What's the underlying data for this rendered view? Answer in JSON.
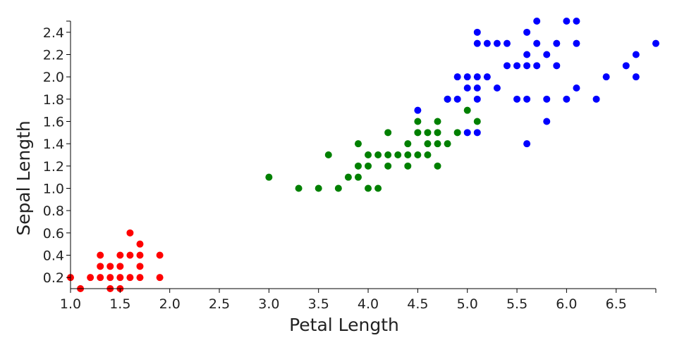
{
  "chart_data": {
    "type": "scatter",
    "xlabel": "Petal Length",
    "ylabel": "Sepal Length",
    "xlim": [
      1.0,
      6.9
    ],
    "ylim": [
      0.1,
      2.5
    ],
    "xticks": [
      "1.0",
      "1.5",
      "2.0",
      "2.5",
      "3.0",
      "3.5",
      "4.0",
      "4.5",
      "5.0",
      "5.5",
      "6.0",
      "6.5"
    ],
    "yticks": [
      "0.2",
      "0.4",
      "0.6",
      "0.8",
      "1.0",
      "1.2",
      "1.4",
      "1.6",
      "1.8",
      "2.0",
      "2.2",
      "2.4"
    ],
    "grid": false,
    "legend": "none",
    "series": [
      {
        "color": "#ff0000",
        "points": [
          [
            1.0,
            0.2
          ],
          [
            1.1,
            0.1
          ],
          [
            1.2,
            0.2
          ],
          [
            1.3,
            0.2
          ],
          [
            1.3,
            0.3
          ],
          [
            1.3,
            0.4
          ],
          [
            1.4,
            0.1
          ],
          [
            1.4,
            0.2
          ],
          [
            1.4,
            0.3
          ],
          [
            1.5,
            0.1
          ],
          [
            1.5,
            0.2
          ],
          [
            1.5,
            0.3
          ],
          [
            1.5,
            0.4
          ],
          [
            1.6,
            0.2
          ],
          [
            1.6,
            0.4
          ],
          [
            1.6,
            0.6
          ],
          [
            1.7,
            0.2
          ],
          [
            1.7,
            0.3
          ],
          [
            1.7,
            0.4
          ],
          [
            1.7,
            0.5
          ],
          [
            1.9,
            0.2
          ],
          [
            1.9,
            0.4
          ]
        ]
      },
      {
        "color": "#008000",
        "points": [
          [
            3.0,
            1.1
          ],
          [
            3.3,
            1.0
          ],
          [
            3.5,
            1.0
          ],
          [
            3.6,
            1.3
          ],
          [
            3.7,
            1.0
          ],
          [
            3.8,
            1.1
          ],
          [
            3.9,
            1.1
          ],
          [
            3.9,
            1.2
          ],
          [
            3.9,
            1.4
          ],
          [
            4.0,
            1.0
          ],
          [
            4.0,
            1.2
          ],
          [
            4.0,
            1.3
          ],
          [
            4.1,
            1.0
          ],
          [
            4.1,
            1.3
          ],
          [
            4.2,
            1.2
          ],
          [
            4.2,
            1.3
          ],
          [
            4.2,
            1.5
          ],
          [
            4.3,
            1.3
          ],
          [
            4.4,
            1.2
          ],
          [
            4.4,
            1.3
          ],
          [
            4.4,
            1.4
          ],
          [
            4.5,
            1.3
          ],
          [
            4.5,
            1.5
          ],
          [
            4.5,
            1.6
          ],
          [
            4.6,
            1.3
          ],
          [
            4.6,
            1.4
          ],
          [
            4.6,
            1.5
          ],
          [
            4.7,
            1.2
          ],
          [
            4.7,
            1.4
          ],
          [
            4.7,
            1.5
          ],
          [
            4.7,
            1.6
          ],
          [
            4.8,
            1.4
          ],
          [
            4.8,
            1.8
          ],
          [
            4.9,
            1.5
          ],
          [
            5.0,
            1.7
          ],
          [
            5.1,
            1.6
          ]
        ]
      },
      {
        "color": "#0000ff",
        "points": [
          [
            4.5,
            1.7
          ],
          [
            4.8,
            1.8
          ],
          [
            4.9,
            1.8
          ],
          [
            4.9,
            2.0
          ],
          [
            5.0,
            1.5
          ],
          [
            5.0,
            1.9
          ],
          [
            5.0,
            2.0
          ],
          [
            5.1,
            1.5
          ],
          [
            5.1,
            1.8
          ],
          [
            5.1,
            1.9
          ],
          [
            5.1,
            2.0
          ],
          [
            5.1,
            2.3
          ],
          [
            5.1,
            2.4
          ],
          [
            5.2,
            2.0
          ],
          [
            5.2,
            2.3
          ],
          [
            5.3,
            1.9
          ],
          [
            5.3,
            2.3
          ],
          [
            5.4,
            2.1
          ],
          [
            5.4,
            2.3
          ],
          [
            5.5,
            1.8
          ],
          [
            5.5,
            2.1
          ],
          [
            5.6,
            1.4
          ],
          [
            5.6,
            1.8
          ],
          [
            5.6,
            2.1
          ],
          [
            5.6,
            2.2
          ],
          [
            5.6,
            2.4
          ],
          [
            5.7,
            2.1
          ],
          [
            5.7,
            2.3
          ],
          [
            5.7,
            2.5
          ],
          [
            5.8,
            1.6
          ],
          [
            5.8,
            1.8
          ],
          [
            5.8,
            2.2
          ],
          [
            5.9,
            2.1
          ],
          [
            5.9,
            2.3
          ],
          [
            6.0,
            1.8
          ],
          [
            6.0,
            2.5
          ],
          [
            6.1,
            1.9
          ],
          [
            6.1,
            2.3
          ],
          [
            6.1,
            2.5
          ],
          [
            6.3,
            1.8
          ],
          [
            6.4,
            2.0
          ],
          [
            6.6,
            2.1
          ],
          [
            6.7,
            2.0
          ],
          [
            6.7,
            2.2
          ],
          [
            6.9,
            2.3
          ]
        ]
      }
    ]
  }
}
